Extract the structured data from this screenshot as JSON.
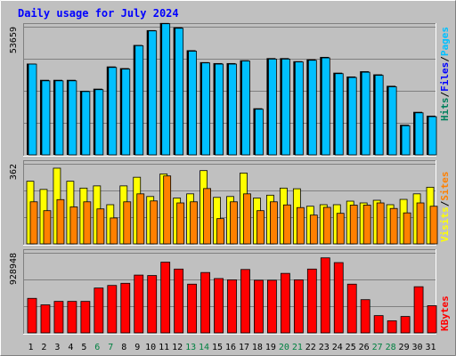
{
  "title": "Daily usage for July 2024",
  "colors": {
    "background": "#C0C0C0",
    "title": "#0000FF",
    "hits": "#00805C",
    "files": "#0000FF",
    "pages": "#00C0FF",
    "visits": "#FFFF00",
    "sites": "#FF8000",
    "kbytes": "#FF0000",
    "grid": "#808080",
    "weekend": "#008040",
    "weekday": "#000000"
  },
  "chart_data": [
    {
      "type": "bar",
      "panel": "hits-files-pages",
      "y_tick_label": "53659",
      "ylim": [
        0,
        53659
      ],
      "categories": [
        "1",
        "2",
        "3",
        "4",
        "5",
        "6",
        "7",
        "8",
        "9",
        "10",
        "11",
        "12",
        "13",
        "14",
        "15",
        "16",
        "17",
        "18",
        "19",
        "20",
        "21",
        "22",
        "23",
        "24",
        "25",
        "26",
        "27",
        "28",
        "29",
        "30",
        "31"
      ],
      "weekend_days": [
        "6",
        "7",
        "13",
        "14",
        "20",
        "21",
        "27",
        "28"
      ],
      "legend": [
        {
          "text": "Hits",
          "color": "#00805C"
        },
        {
          "text": "/",
          "color": "#000000"
        },
        {
          "text": "Files",
          "color": "#0000FF"
        },
        {
          "text": "/",
          "color": "#000000"
        },
        {
          "text": "Pages",
          "color": "#00C0FF"
        }
      ],
      "series": [
        {
          "name": "Hits",
          "values": [
            38200,
            31400,
            31400,
            31400,
            26800,
            27700,
            37000,
            36300,
            46000,
            52200,
            55200,
            53400,
            43800,
            38800,
            38400,
            38400,
            39600,
            19500,
            40500,
            40500,
            39200,
            40000,
            41000,
            34400,
            32800,
            35000,
            33700,
            28900,
            12600,
            18000,
            16400
          ]
        },
        {
          "name": "Pages",
          "values": [
            38000,
            31000,
            31000,
            31000,
            26500,
            27300,
            36600,
            35900,
            45700,
            51900,
            54900,
            53000,
            43400,
            38500,
            38000,
            38000,
            39300,
            19100,
            40100,
            40100,
            38900,
            39600,
            40600,
            34000,
            32400,
            34600,
            33300,
            28500,
            12200,
            17600,
            16000
          ]
        }
      ]
    },
    {
      "type": "bar",
      "panel": "visits-sites",
      "y_tick_label": "362",
      "ylim": [
        0,
        362
      ],
      "legend": [
        {
          "text": "Visits",
          "color": "#FFFF00"
        },
        {
          "text": "/",
          "color": "#000000"
        },
        {
          "text": "Sites",
          "color": "#FF8000"
        }
      ],
      "series": [
        {
          "name": "Visits",
          "values": [
            283,
            246,
            342,
            283,
            252,
            262,
            177,
            262,
            301,
            214,
            316,
            207,
            226,
            331,
            210,
            214,
            320,
            207,
            220,
            252,
            249,
            170,
            177,
            177,
            193,
            185,
            197,
            177,
            201,
            226,
            256
          ]
        },
        {
          "name": "Sites",
          "values": [
            190,
            150,
            200,
            167,
            190,
            158,
            117,
            190,
            226,
            194,
            307,
            185,
            190,
            250,
            114,
            190,
            226,
            150,
            190,
            176,
            164,
            130,
            165,
            138,
            175,
            175,
            185,
            160,
            140,
            185,
            170
          ]
        }
      ]
    },
    {
      "type": "bar",
      "panel": "kbytes",
      "y_tick_label": "928948",
      "ylim": [
        0,
        928948
      ],
      "legend": [
        {
          "text": "KBytes",
          "color": "#FF0000"
        }
      ],
      "series": [
        {
          "name": "KBytes",
          "values": [
            400000,
            325000,
            365000,
            365000,
            365000,
            520000,
            550000,
            575000,
            670000,
            665000,
            820000,
            740000,
            565000,
            700000,
            630000,
            615000,
            735000,
            610000,
            610000,
            690000,
            615000,
            740000,
            870000,
            815000,
            565000,
            385000,
            200000,
            140000,
            190000,
            535000,
            315000
          ]
        }
      ]
    }
  ]
}
